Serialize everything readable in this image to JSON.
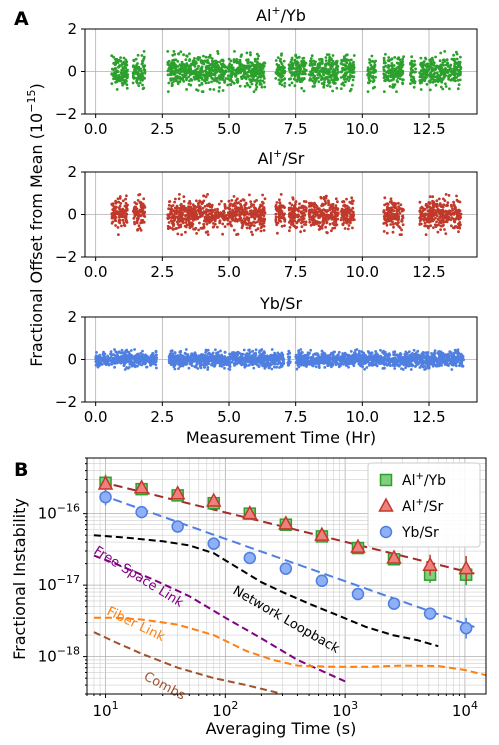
{
  "panel_labels": {
    "a": "A",
    "b": "B"
  },
  "shared": {
    "ylabel_a": "Fractional Offset from Mean (10^-15)",
    "xlabel_a": "Measurement Time (Hr)"
  },
  "colors": {
    "alyb": "#2ca02c",
    "alsr": "#c0392b",
    "ybsr": "#4f7fe0"
  },
  "chart_data": [
    {
      "type": "scatter",
      "title": "Al+/Yb",
      "x_ticks": [
        "0.0",
        "2.5",
        "5.0",
        "7.5",
        "10.0",
        "12.5"
      ],
      "y_ticks": [
        "2",
        "0",
        "−2"
      ],
      "xlim": [
        -0.4,
        14.3
      ],
      "ylim": [
        -2,
        2
      ],
      "segments": [
        [
          0.6,
          1.2
        ],
        [
          1.4,
          1.85
        ],
        [
          2.7,
          4.9
        ],
        [
          4.95,
          6.35
        ],
        [
          6.75,
          7.1
        ],
        [
          7.25,
          7.9
        ],
        [
          8.0,
          9.1
        ],
        [
          9.2,
          9.7
        ],
        [
          10.2,
          10.5
        ],
        [
          10.8,
          11.55
        ],
        [
          11.8,
          12.0
        ],
        [
          12.15,
          13.7
        ]
      ],
      "scatter_amplitude": 0.7,
      "series": [
        {
          "values_mean": 0
        }
      ]
    },
    {
      "type": "scatter",
      "title": "Al+/Sr",
      "x_ticks": [
        "0.0",
        "2.5",
        "5.0",
        "7.5",
        "10.0",
        "12.5"
      ],
      "y_ticks": [
        "2",
        "0",
        "−2"
      ],
      "xlim": [
        -0.4,
        14.3
      ],
      "ylim": [
        -2,
        2
      ],
      "segments": [
        [
          0.6,
          1.2
        ],
        [
          1.4,
          1.85
        ],
        [
          2.7,
          4.9
        ],
        [
          4.95,
          6.35
        ],
        [
          6.75,
          7.1
        ],
        [
          7.25,
          7.9
        ],
        [
          8.0,
          9.1
        ],
        [
          9.2,
          9.7
        ],
        [
          10.8,
          11.55
        ],
        [
          12.15,
          13.7
        ]
      ],
      "scatter_amplitude": 0.7,
      "series": [
        {
          "values_mean": 0
        }
      ]
    },
    {
      "type": "scatter",
      "title": "Yb/Sr",
      "x_ticks": [
        "0.0",
        "2.5",
        "5.0",
        "7.5",
        "10.0",
        "12.5"
      ],
      "y_ticks": [
        "2",
        "0",
        "−2"
      ],
      "xlim": [
        -0.4,
        14.3
      ],
      "ylim": [
        -2,
        2
      ],
      "segments": [
        [
          0.0,
          2.3
        ],
        [
          2.75,
          7.05
        ],
        [
          7.2,
          7.3
        ],
        [
          7.5,
          13.8
        ]
      ],
      "scatter_amplitude": 0.35,
      "series": [
        {
          "values_mean": 0
        }
      ]
    },
    {
      "type": "line",
      "log_x": true,
      "log_y": true,
      "xlabel": "Averaging Time (s)",
      "ylabel": "Fractional Instability",
      "xlim": [
        7,
        15000
      ],
      "ylim": [
        3e-19,
        6e-16
      ],
      "x_ticks": [
        {
          "base": "10",
          "exp": "1",
          "v": 10
        },
        {
          "base": "10",
          "exp": "2",
          "v": 100
        },
        {
          "base": "10",
          "exp": "3",
          "v": 1000
        },
        {
          "base": "10",
          "exp": "4",
          "v": 10000
        }
      ],
      "y_ticks": [
        {
          "base": "10",
          "exp": "−18",
          "v": 1e-18
        },
        {
          "base": "10",
          "exp": "−17",
          "v": 1e-17
        },
        {
          "base": "10",
          "exp": "−16",
          "v": 1e-16
        }
      ],
      "legend": [
        {
          "base": "Al",
          "sup": "+",
          "rest": "/Yb"
        },
        {
          "base": "Al",
          "sup": "+",
          "rest": "/Sr"
        },
        {
          "base": "Yb/Sr",
          "sup": "",
          "rest": ""
        }
      ],
      "legend_position": "top-right",
      "series": [
        {
          "name": "Al+/Yb",
          "marker": "square",
          "x": [
            10,
            20,
            40,
            80,
            160,
            320,
            640,
            1280,
            2560,
            5120,
            10240
          ],
          "y": [
            2.7e-16,
            2.2e-16,
            1.8e-16,
            1.4e-16,
            1e-16,
            7e-17,
            4.8e-17,
            3.3e-17,
            2.3e-17,
            1.4e-17,
            1.4e-17
          ],
          "err": [
            0.3,
            0.2,
            0.15,
            0.15,
            0.15,
            0.15,
            0.15,
            0.15,
            0.2,
            0.3,
            0.4
          ]
        },
        {
          "name": "Al+/Sr",
          "marker": "triangle",
          "x": [
            10,
            20,
            40,
            80,
            160,
            320,
            640,
            1280,
            2560,
            5120,
            10240
          ],
          "y": [
            2.6e-16,
            2.3e-16,
            1.9e-16,
            1.5e-16,
            1e-16,
            7.2e-17,
            5e-17,
            3.4e-17,
            2.4e-17,
            1.9e-17,
            1.7e-17
          ],
          "err": [
            0.3,
            0.2,
            0.15,
            0.15,
            0.15,
            0.15,
            0.15,
            0.15,
            0.2,
            0.4,
            0.5
          ]
        },
        {
          "name": "Yb/Sr",
          "marker": "circle",
          "x": [
            10,
            20,
            40,
            80,
            160,
            320,
            640,
            1280,
            2560,
            5120,
            10240
          ],
          "y": [
            1.7e-16,
            1.05e-16,
            6.6e-17,
            3.8e-17,
            2.4e-17,
            1.7e-17,
            1.15e-17,
            7.5e-18,
            5.5e-18,
            4e-18,
            2.5e-18
          ],
          "err": [
            0.3,
            0.15,
            0.15,
            0.1,
            0.1,
            0.1,
            0.1,
            0.1,
            0.15,
            0.2,
            0.4
          ]
        }
      ],
      "fits": [
        {
          "color": "#a52a2a",
          "x": [
            9,
            12000
          ],
          "y": [
            2.8e-16,
            1.45e-17
          ]
        },
        {
          "color": "#4f7fe0",
          "x": [
            9,
            12000
          ],
          "y": [
            1.85e-16,
            2.6e-18
          ]
        }
      ],
      "reference_curves": [
        {
          "label": "Network Loopback",
          "color": "#000000",
          "x": [
            8,
            15,
            30,
            50,
            80,
            130,
            200,
            300,
            500,
            800,
            1500,
            2500,
            4000,
            6000
          ],
          "y": [
            5e-17,
            4.6e-17,
            4.1e-17,
            3.6e-17,
            2.8e-17,
            1.7e-17,
            1.1e-17,
            8e-18,
            5.5e-18,
            4e-18,
            2.6e-18,
            2e-18,
            1.7e-18,
            1.4e-18
          ]
        },
        {
          "label": "Free-Space Link",
          "color": "#800080",
          "x": [
            8,
            12,
            25,
            50,
            100,
            200,
            400,
            1000
          ],
          "y": [
            2.6e-17,
            2e-17,
            1.2e-17,
            7e-18,
            3.5e-18,
            1.8e-18,
            9e-19,
            4.5e-19
          ]
        },
        {
          "label": "Fiber Link",
          "color": "#ff7f0e",
          "x": [
            8,
            12,
            20,
            40,
            80,
            150,
            250,
            400,
            800,
            1500,
            3000,
            6000,
            10000,
            15000
          ],
          "y": [
            3.5e-18,
            3.5e-18,
            3.3e-18,
            2.8e-18,
            2e-18,
            1.2e-18,
            9e-19,
            7.5e-19,
            7.2e-19,
            7.2e-19,
            7.5e-19,
            7.4e-19,
            6.5e-19,
            5.5e-19
          ]
        },
        {
          "label": "Combs",
          "color": "#a0522d",
          "x": [
            8,
            12,
            20,
            40,
            80,
            150,
            300
          ],
          "y": [
            2.2e-18,
            1.6e-18,
            1.1e-18,
            7e-19,
            5e-19,
            4e-19,
            3e-19
          ]
        }
      ]
    }
  ]
}
